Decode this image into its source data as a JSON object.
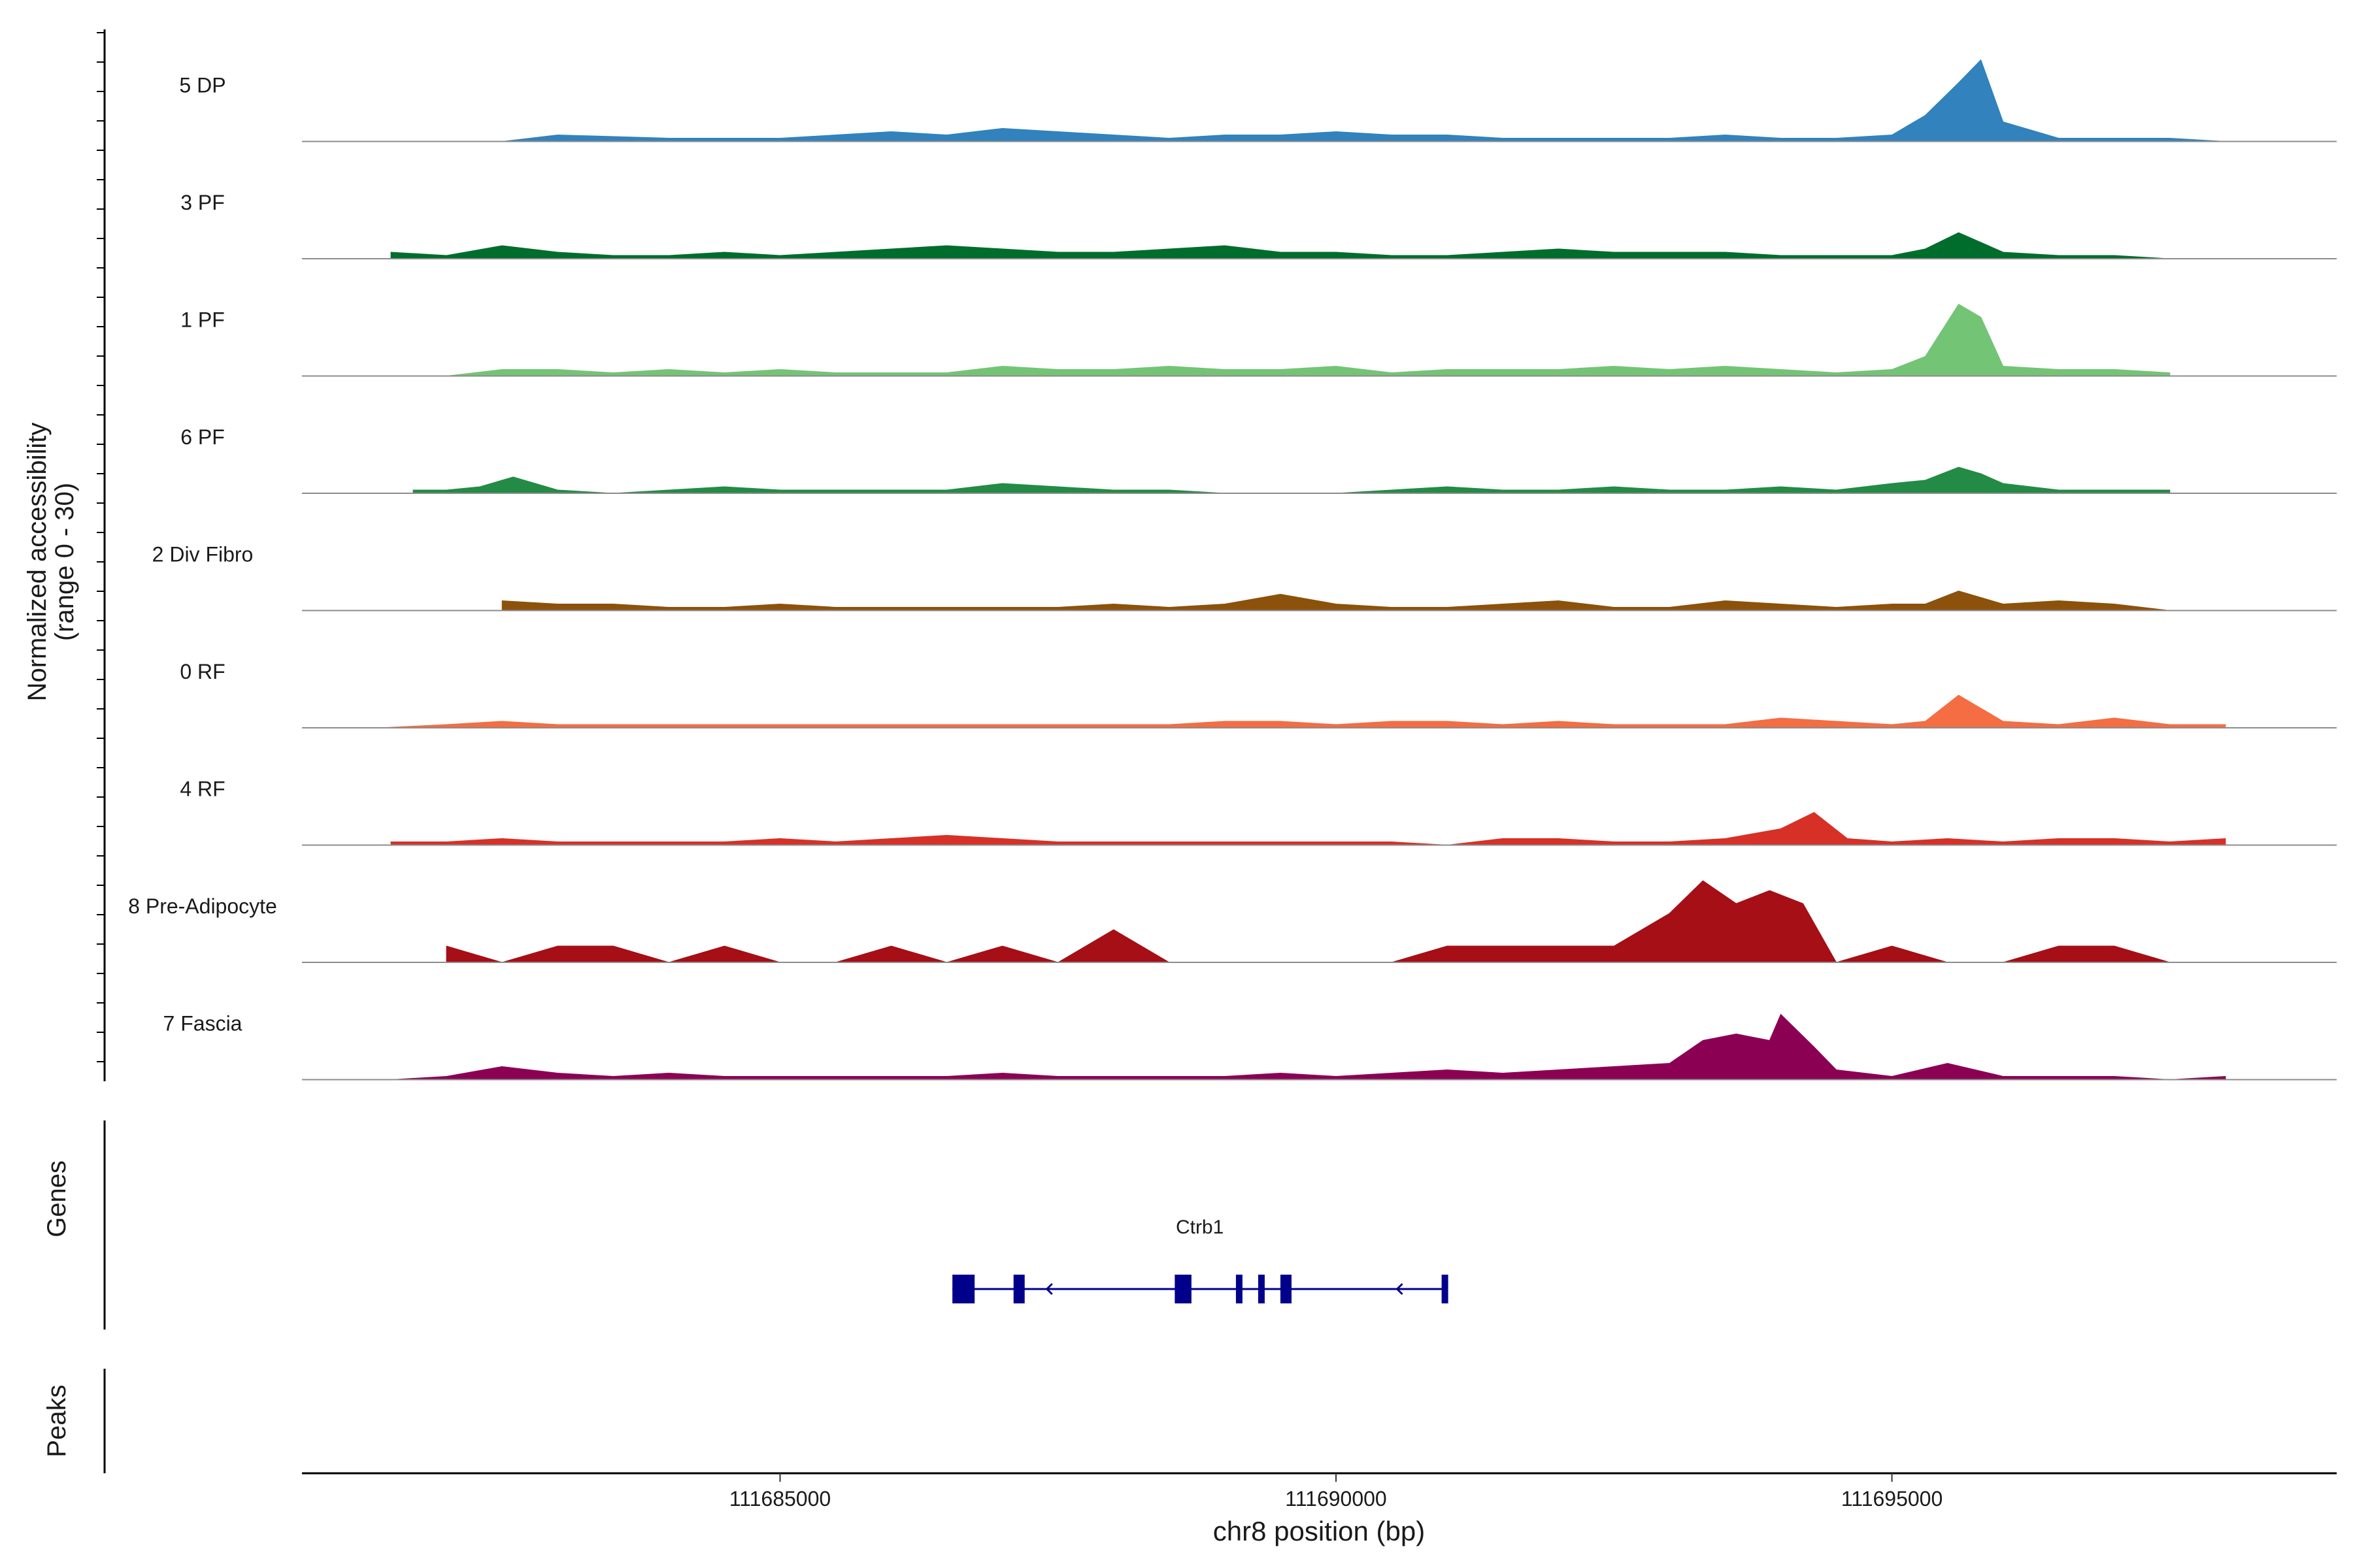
{
  "chart_data": {
    "type": "area",
    "title": "",
    "ylabel": "Normalized accessibility",
    "ylabel_range": "(range 0 - 30)",
    "ylim": [
      0,
      30
    ],
    "xlabel": "chr8 position (bp)",
    "xlim": [
      111680700,
      111699000
    ],
    "x_ticks": [
      111685000,
      111690000,
      111695000
    ],
    "x_tick_labels": [
      "111685000",
      "111690000",
      "111695000"
    ],
    "series": [
      {
        "name": "5 DP",
        "color": "#3182bd",
        "x": [
          111682500,
          111683000,
          111684000,
          111685000,
          111685500,
          111686000,
          111686500,
          111687000,
          111687500,
          111688000,
          111688500,
          111689000,
          111689500,
          111690000,
          111690500,
          111691000,
          111691500,
          111692000,
          111692500,
          111693000,
          111693500,
          111694000,
          111694500,
          111695000,
          111695300,
          111695600,
          111695800,
          111696000,
          111696500,
          111697000,
          111697500,
          111698000
        ],
        "values": [
          0,
          2,
          1,
          1,
          2,
          3,
          2,
          4,
          3,
          2,
          1,
          2,
          2,
          3,
          2,
          2,
          1,
          1,
          1,
          1,
          2,
          1,
          1,
          2,
          8,
          18,
          25,
          6,
          1,
          1,
          1,
          0
        ]
      },
      {
        "name": "3 PF",
        "color": "#006d2c",
        "x": [
          111681500,
          111682000,
          111682500,
          111683000,
          111683500,
          111684000,
          111684500,
          111685000,
          111685500,
          111686000,
          111686500,
          111687000,
          111687500,
          111688000,
          111688500,
          111689000,
          111689500,
          111690000,
          111690500,
          111691000,
          111691500,
          111692000,
          111692500,
          111693000,
          111693500,
          111694000,
          111694500,
          111695000,
          111695300,
          111695600,
          111695800,
          111696000,
          111696500,
          111697000,
          111697500
        ],
        "values": [
          2,
          1,
          4,
          2,
          1,
          1,
          2,
          1,
          2,
          3,
          4,
          3,
          2,
          2,
          3,
          4,
          2,
          2,
          1,
          1,
          2,
          3,
          2,
          2,
          2,
          1,
          1,
          1,
          3,
          8,
          5,
          2,
          1,
          1,
          0
        ]
      },
      {
        "name": "1 PF",
        "color": "#74c476",
        "x": [
          111682000,
          111682500,
          111683000,
          111683500,
          111684000,
          111684500,
          111685000,
          111685500,
          111686000,
          111686500,
          111687000,
          111687500,
          111688000,
          111688500,
          111689000,
          111689500,
          111690000,
          111690500,
          111691000,
          111691500,
          111692000,
          111692500,
          111693000,
          111693500,
          111694000,
          111694500,
          111695000,
          111695300,
          111695600,
          111695800,
          111696000,
          111696500,
          111697000,
          111697500
        ],
        "values": [
          0,
          2,
          2,
          1,
          2,
          1,
          2,
          1,
          1,
          1,
          3,
          2,
          2,
          3,
          2,
          2,
          3,
          1,
          2,
          2,
          2,
          3,
          2,
          3,
          2,
          1,
          2,
          6,
          22,
          18,
          3,
          2,
          2,
          1
        ]
      },
      {
        "name": "6 PF",
        "color": "#238b45",
        "x": [
          111681700,
          111682000,
          111682300,
          111682600,
          111683000,
          111683500,
          111684000,
          111684500,
          111685000,
          111685500,
          111686000,
          111686500,
          111687000,
          111687500,
          111688000,
          111688500,
          111689000,
          111689500,
          111690000,
          111690500,
          111691000,
          111691500,
          111692000,
          111692500,
          111693000,
          111693500,
          111694000,
          111694500,
          111695000,
          111695300,
          111695600,
          111695800,
          111696000,
          111696500,
          111697000,
          111697500
        ],
        "values": [
          1,
          1,
          2,
          5,
          1,
          0,
          1,
          2,
          1,
          1,
          1,
          1,
          3,
          2,
          1,
          1,
          0,
          0,
          0,
          1,
          2,
          1,
          1,
          2,
          1,
          1,
          2,
          1,
          3,
          4,
          8,
          6,
          3,
          1,
          1,
          1
        ]
      },
      {
        "name": "2 Div Fibro",
        "color": "#8c510a",
        "x": [
          111682500,
          111683000,
          111683500,
          111684000,
          111684500,
          111685000,
          111685500,
          111686000,
          111686500,
          111687000,
          111687500,
          111688000,
          111688500,
          111689000,
          111689500,
          111690000,
          111690500,
          111691000,
          111691500,
          111692000,
          111692500,
          111693000,
          111693500,
          111694000,
          111694500,
          111695000,
          111695300,
          111695600,
          111695800,
          111696000,
          111696500,
          111697000,
          111697500
        ],
        "values": [
          3,
          2,
          2,
          1,
          1,
          2,
          1,
          1,
          1,
          1,
          1,
          2,
          1,
          2,
          5,
          2,
          1,
          1,
          2,
          3,
          1,
          1,
          3,
          2,
          1,
          2,
          2,
          6,
          4,
          2,
          3,
          2,
          0
        ]
      },
      {
        "name": "0 RF",
        "color": "#f46d43",
        "x": [
          111681400,
          111682000,
          111682500,
          111683000,
          111683500,
          111684000,
          111684500,
          111685000,
          111685500,
          111686000,
          111686500,
          111687000,
          111687500,
          111688000,
          111688500,
          111689000,
          111689500,
          111690000,
          111690500,
          111691000,
          111691500,
          111692000,
          111692500,
          111693000,
          111693500,
          111694000,
          111694500,
          111695000,
          111695300,
          111695600,
          111695800,
          111696000,
          111696500,
          111697000,
          111697500,
          111698000
        ],
        "values": [
          0,
          1,
          2,
          1,
          1,
          1,
          1,
          1,
          1,
          1,
          1,
          1,
          1,
          1,
          1,
          2,
          2,
          1,
          2,
          2,
          1,
          2,
          1,
          1,
          1,
          3,
          2,
          1,
          2,
          10,
          6,
          2,
          1,
          3,
          1,
          1
        ]
      },
      {
        "name": "4 RF",
        "color": "#d73027",
        "x": [
          111681500,
          111682000,
          111682500,
          111683000,
          111683500,
          111684000,
          111684500,
          111685000,
          111685500,
          111686000,
          111686500,
          111687000,
          111687500,
          111688000,
          111688500,
          111689000,
          111689500,
          111690000,
          111690500,
          111691000,
          111691500,
          111692000,
          111692500,
          111693000,
          111693500,
          111694000,
          111694300,
          111694600,
          111695000,
          111695500,
          111696000,
          111696500,
          111697000,
          111697500,
          111698000
        ],
        "values": [
          1,
          1,
          2,
          1,
          1,
          1,
          1,
          2,
          1,
          2,
          3,
          2,
          1,
          1,
          1,
          1,
          1,
          1,
          1,
          0,
          2,
          2,
          1,
          1,
          2,
          5,
          10,
          2,
          1,
          2,
          1,
          2,
          2,
          1,
          2
        ]
      },
      {
        "name": "8 Pre-Adipocyte",
        "color": "#a50f15",
        "x": [
          111682000,
          111682500,
          111683000,
          111683500,
          111684000,
          111684500,
          111685000,
          111685500,
          111686000,
          111686500,
          111687000,
          111687500,
          111688000,
          111688500,
          111689000,
          111689500,
          111690000,
          111690500,
          111691000,
          111691500,
          111692000,
          111692500,
          111693000,
          111693300,
          111693600,
          111693900,
          111694200,
          111694500,
          111695000,
          111695500,
          111696000,
          111696500,
          111697000,
          111697500
        ],
        "values": [
          5,
          0,
          5,
          5,
          0,
          5,
          0,
          0,
          5,
          0,
          5,
          0,
          10,
          0,
          0,
          0,
          0,
          0,
          5,
          5,
          5,
          5,
          15,
          25,
          18,
          22,
          18,
          0,
          5,
          0,
          0,
          5,
          5,
          0
        ]
      },
      {
        "name": "7 Fascia",
        "color": "#8c0054",
        "x": [
          111681500,
          111682000,
          111682500,
          111683000,
          111683500,
          111684000,
          111684500,
          111685000,
          111685500,
          111686000,
          111686500,
          111687000,
          111687500,
          111688000,
          111688500,
          111689000,
          111689500,
          111690000,
          111690500,
          111691000,
          111691500,
          111692000,
          111692500,
          111693000,
          111693300,
          111693600,
          111693900,
          111694000,
          111694300,
          111694500,
          111695000,
          111695500,
          111696000,
          111696500,
          111697000,
          111697500,
          111698000
        ],
        "values": [
          0,
          1,
          4,
          2,
          1,
          2,
          1,
          1,
          1,
          1,
          1,
          2,
          1,
          1,
          1,
          1,
          2,
          1,
          2,
          3,
          2,
          3,
          4,
          5,
          12,
          14,
          12,
          20,
          10,
          3,
          1,
          5,
          1,
          1,
          1,
          0,
          1
        ]
      }
    ],
    "gene_track": {
      "label": "Genes",
      "gene_name": "Ctrb1",
      "start": 111686550,
      "end": 111691000,
      "strand": "-",
      "exons": [
        {
          "start": 111686550,
          "end": 111686750
        },
        {
          "start": 111687100,
          "end": 111687200
        },
        {
          "start": 111688550,
          "end": 111688700
        },
        {
          "start": 111689100,
          "end": 111689150
        },
        {
          "start": 111689300,
          "end": 111689350
        },
        {
          "start": 111689500,
          "end": 111689600
        },
        {
          "start": 111690950,
          "end": 111691000
        }
      ]
    },
    "peaks_track": {
      "label": "Peaks"
    }
  }
}
